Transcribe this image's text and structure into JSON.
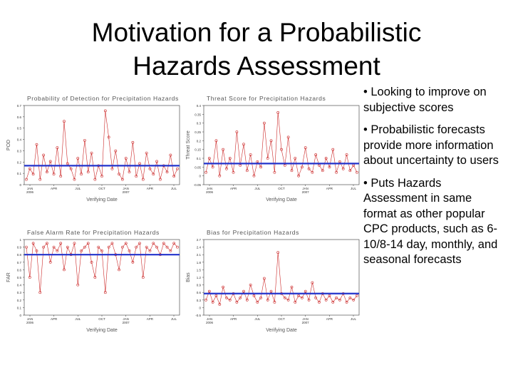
{
  "slide": {
    "title_line1": "Motivation for a Probabilistic",
    "title_line2": "Hazards Assessment",
    "bullets": [
      "• Looking to improve on subjective scores",
      "• Probabilistic forecasts provide more information about uncertainty to users",
      "• Puts Hazards Assessment in same format as other popular CPC products, such as 6-10/8-14 day, monthly, and seasonal forecasts"
    ]
  },
  "colors": {
    "series": "#cc2a2a",
    "mean_line": "#2233cc",
    "axis": "#333333",
    "title_text": "#555555"
  },
  "chart_data": [
    {
      "type": "line",
      "title": "Probability of Detection for Precipitation Hazards",
      "xlabel": "Verifying Date",
      "ylabel": "POD",
      "ylim": [
        0,
        0.75
      ],
      "yticks": [
        "0",
        "0.1",
        "0.2",
        "0.3",
        "0.4",
        "0.5",
        "0.6",
        "0.7"
      ],
      "xticks": [
        "JAN\n2006",
        "APR",
        "JUL",
        "OCT",
        "JAN\n2007",
        "APR",
        "JUL"
      ],
      "mean": 0.18,
      "series": [
        {
          "values": [
            0.05,
            0.15,
            0.1,
            0.38,
            0.05,
            0.28,
            0.12,
            0.22,
            0.1,
            0.35,
            0.08,
            0.6,
            0.2,
            0.15,
            0.05,
            0.25,
            0.1,
            0.42,
            0.12,
            0.3,
            0.05,
            0.18,
            0.08,
            0.7,
            0.45,
            0.15,
            0.32,
            0.1,
            0.05,
            0.25,
            0.12,
            0.4,
            0.08,
            0.2,
            0.05,
            0.3,
            0.15,
            0.1,
            0.22,
            0.05,
            0.18,
            0.12,
            0.28,
            0.08,
            0.15
          ]
        }
      ]
    },
    {
      "type": "line",
      "title": "Threat Score for Precipitation Hazards",
      "xlabel": "Verifying Date",
      "ylabel": "Threat Score",
      "ylim": [
        -0.05,
        0.4
      ],
      "yticks": [
        "-0.05",
        "0",
        "0.05",
        "0.1",
        "0.15",
        "0.2",
        "0.25",
        "0.3",
        "0.35",
        "0.4"
      ],
      "xticks": [
        "JAN\n2006",
        "APR",
        "JUL",
        "OCT",
        "JAN\n2007",
        "APR",
        "JUL"
      ],
      "mean": 0.07,
      "series": [
        {
          "values": [
            0.02,
            0.1,
            0.05,
            0.2,
            0.0,
            0.15,
            0.04,
            0.1,
            0.02,
            0.25,
            0.06,
            0.18,
            0.03,
            0.12,
            0.0,
            0.08,
            0.05,
            0.3,
            0.1,
            0.2,
            0.02,
            0.36,
            0.15,
            0.06,
            0.22,
            0.03,
            0.1,
            0.0,
            0.05,
            0.16,
            0.04,
            0.02,
            0.12,
            0.06,
            0.03,
            0.1,
            0.05,
            0.15,
            0.02,
            0.08,
            0.04,
            0.12,
            0.03,
            0.06,
            0.02
          ]
        }
      ]
    },
    {
      "type": "line",
      "title": "False Alarm Rate for Precipitation Hazards",
      "xlabel": "Verifying Date",
      "ylabel": "FAR",
      "ylim": [
        0,
        1.0
      ],
      "yticks": [
        "0",
        "0.1",
        "0.2",
        "0.3",
        "0.4",
        "0.5",
        "0.6",
        "0.7",
        "0.8",
        "0.9",
        "1"
      ],
      "xticks": [
        "JAN\n2006",
        "APR",
        "JUL",
        "OCT",
        "JAN\n2007",
        "APR",
        "JUL"
      ],
      "mean": 0.8,
      "series": [
        {
          "values": [
            0.9,
            0.5,
            0.95,
            0.85,
            0.3,
            0.9,
            0.95,
            0.7,
            0.9,
            0.85,
            0.95,
            0.6,
            0.9,
            0.8,
            0.95,
            0.4,
            0.85,
            0.9,
            0.95,
            0.7,
            0.5,
            0.9,
            0.85,
            0.3,
            0.9,
            0.95,
            0.8,
            0.6,
            0.9,
            0.95,
            0.85,
            0.7,
            0.9,
            0.95,
            0.5,
            0.9,
            0.85,
            0.95,
            0.9,
            0.8,
            0.95,
            0.9,
            0.85,
            0.95,
            0.9
          ]
        }
      ]
    },
    {
      "type": "line",
      "title": "Bias for Precipitation Hazards",
      "xlabel": "Verifying Date",
      "ylabel": "Bias",
      "ylim": [
        -0.5,
        3.0
      ],
      "yticks": [
        "-0.5",
        "0",
        "0.3",
        "0.6",
        "0.9",
        "1.2",
        "1.5",
        "1.8",
        "2.1",
        "2.4",
        "2.7"
      ],
      "xticks": [
        "JAN\n2006",
        "APR",
        "JUL",
        "OCT",
        "JAN\n2007",
        "APR",
        "JUL"
      ],
      "mean": 0.5,
      "series": [
        {
          "values": [
            0.2,
            0.6,
            0.1,
            0.4,
            0.0,
            0.8,
            0.3,
            0.2,
            0.5,
            0.1,
            0.3,
            0.6,
            0.2,
            0.9,
            0.4,
            0.1,
            0.3,
            1.2,
            0.2,
            0.6,
            0.1,
            2.4,
            0.5,
            0.3,
            0.2,
            0.8,
            0.1,
            0.4,
            0.3,
            0.6,
            0.2,
            1.0,
            0.3,
            0.1,
            0.5,
            0.2,
            0.4,
            0.1,
            0.3,
            0.2,
            0.5,
            0.1,
            0.3,
            0.2,
            0.4
          ]
        }
      ]
    }
  ]
}
